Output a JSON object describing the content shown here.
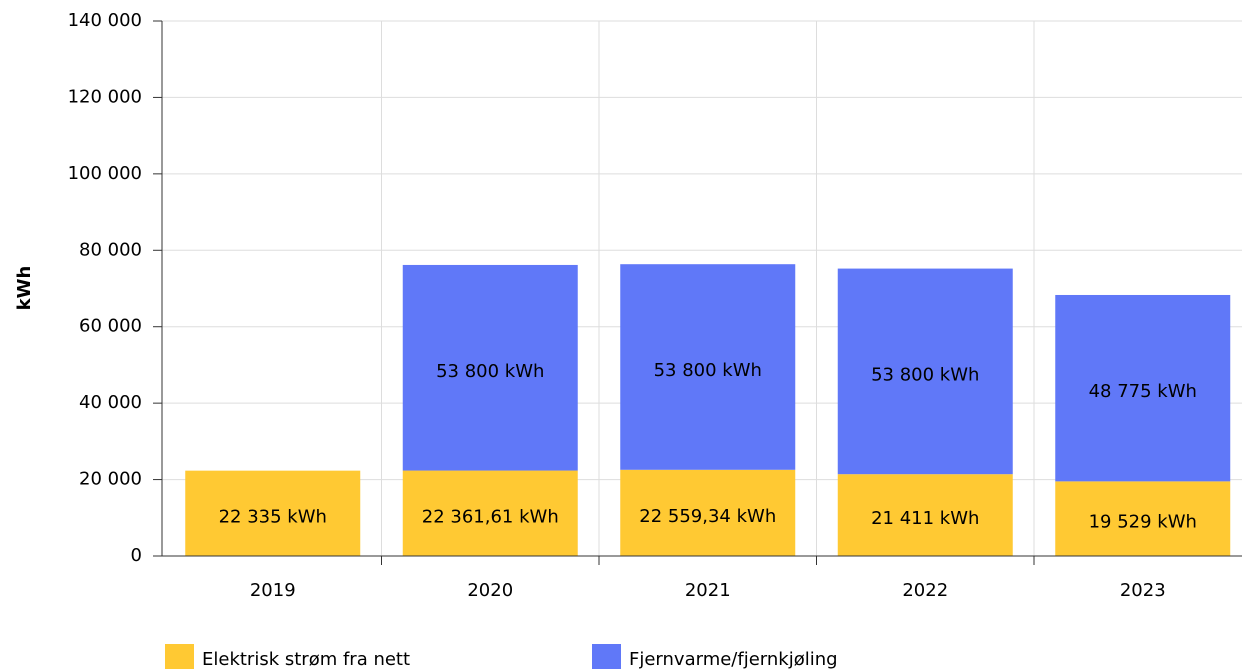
{
  "chart_data": {
    "type": "bar",
    "stacked": true,
    "y_label": "kWh",
    "categories": [
      "2019",
      "2020",
      "2021",
      "2022",
      "2023"
    ],
    "series": [
      {
        "name": "Elektrisk strøm fra nett",
        "color": "#ffc933",
        "values": [
          22335,
          22361.61,
          22559.34,
          21411,
          19529
        ],
        "value_labels": [
          "22 335 kWh",
          "22 361,61 kWh",
          "22 559,34 kWh",
          "21 411 kWh",
          "19 529 kWh"
        ]
      },
      {
        "name": "Fjernvarme/fjernkjøling",
        "color": "#6078f8",
        "values": [
          null,
          53800,
          53800,
          53800,
          48775
        ],
        "value_labels": [
          null,
          "53 800 kWh",
          "53 800 kWh",
          "53 800 kWh",
          "48 775 kWh"
        ]
      }
    ],
    "ylim": [
      0,
      140000
    ],
    "yticks": [
      0,
      {
        "value": 20000,
        "label": "20 000"
      },
      {
        "value": 40000,
        "label": "40 000"
      },
      {
        "value": 60000,
        "label": "60 000"
      },
      {
        "value": 80000,
        "label": "80 000"
      },
      {
        "value": 100000,
        "label": "100 000"
      },
      {
        "value": 120000,
        "label": "120 000"
      },
      {
        "value": 140000,
        "label": "140 000"
      }
    ],
    "grid": true,
    "legend": "bottom"
  }
}
